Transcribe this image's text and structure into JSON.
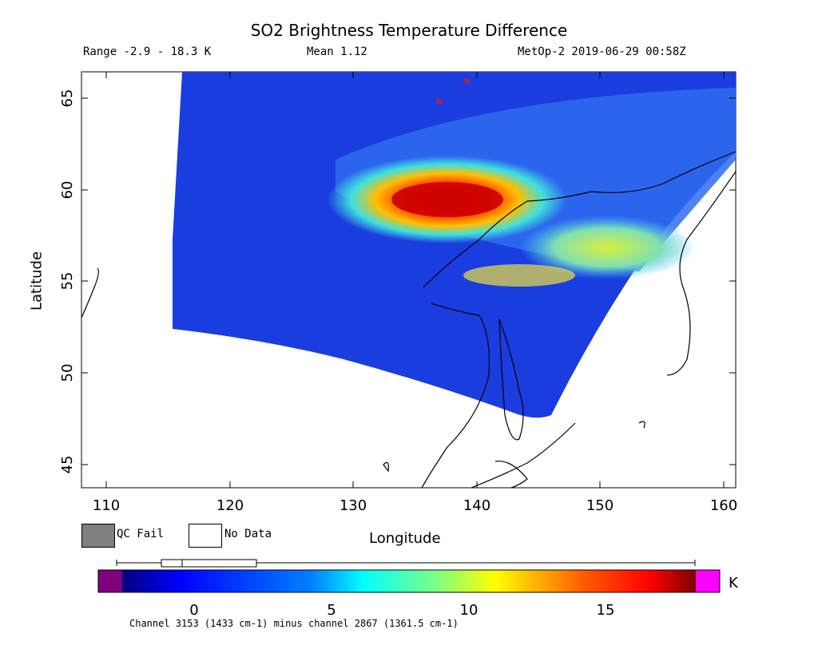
{
  "header": {
    "title": "SO2 Brightness Temperature Difference",
    "range": "Range -2.9 - 18.3 K",
    "mean": "Mean 1.12",
    "satellite_time": "MetOp-2 2019-06-29 00:58Z"
  },
  "axes": {
    "xlabel": "Longitude",
    "ylabel": "Latitude",
    "xticks": [
      "110",
      "120",
      "130",
      "140",
      "150",
      "160"
    ],
    "yticks": [
      "45",
      "50",
      "55",
      "60",
      "65"
    ]
  },
  "legend": {
    "qc_fail": "QC Fail",
    "no_data": "No Data",
    "qc_fail_color": "#7f7f7f",
    "no_data_color": "#ffffff"
  },
  "colorbar": {
    "unit": "K",
    "ticks": [
      "0",
      "5",
      "10",
      "15"
    ],
    "under_color": "#7f007f",
    "over_color": "#ff00ff"
  },
  "caption": "Channel 3153 (1433 cm-1) minus channel 2867 (1361.5 cm-1)",
  "colors": {
    "background_field": "#1a3de0",
    "plume_peak": "#cc0000"
  }
}
